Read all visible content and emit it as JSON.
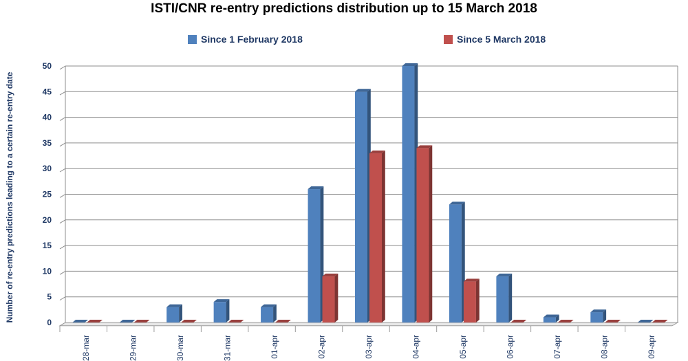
{
  "chart_data": {
    "type": "bar",
    "title": "ISTI/CNR re-entry predictions distribution up to 15 March 2018",
    "ylabel": "Number of re-entry predictions leading to a certain re-entry date",
    "xlabel": "",
    "ylim": [
      0,
      50
    ],
    "yticks": [
      0,
      5,
      10,
      15,
      20,
      25,
      30,
      35,
      40,
      45,
      50
    ],
    "grid": true,
    "legend_position": "top",
    "categories": [
      "28-mar",
      "29-mar",
      "30-mar",
      "31-mar",
      "01-apr",
      "02-apr",
      "03-apr",
      "04-apr",
      "05-apr",
      "06-apr",
      "07-apr",
      "08-apr",
      "09-apr"
    ],
    "series": [
      {
        "name": "Since 1 February 2018",
        "color": "#4f81bd",
        "values": [
          0,
          0,
          3,
          4,
          3,
          26,
          45,
          50,
          23,
          9,
          1,
          2,
          0
        ]
      },
      {
        "name": "Since 5 March 2018",
        "color": "#c0504d",
        "values": [
          0,
          0,
          0,
          0,
          0,
          9,
          33,
          34,
          8,
          0,
          0,
          0,
          0
        ]
      }
    ]
  }
}
